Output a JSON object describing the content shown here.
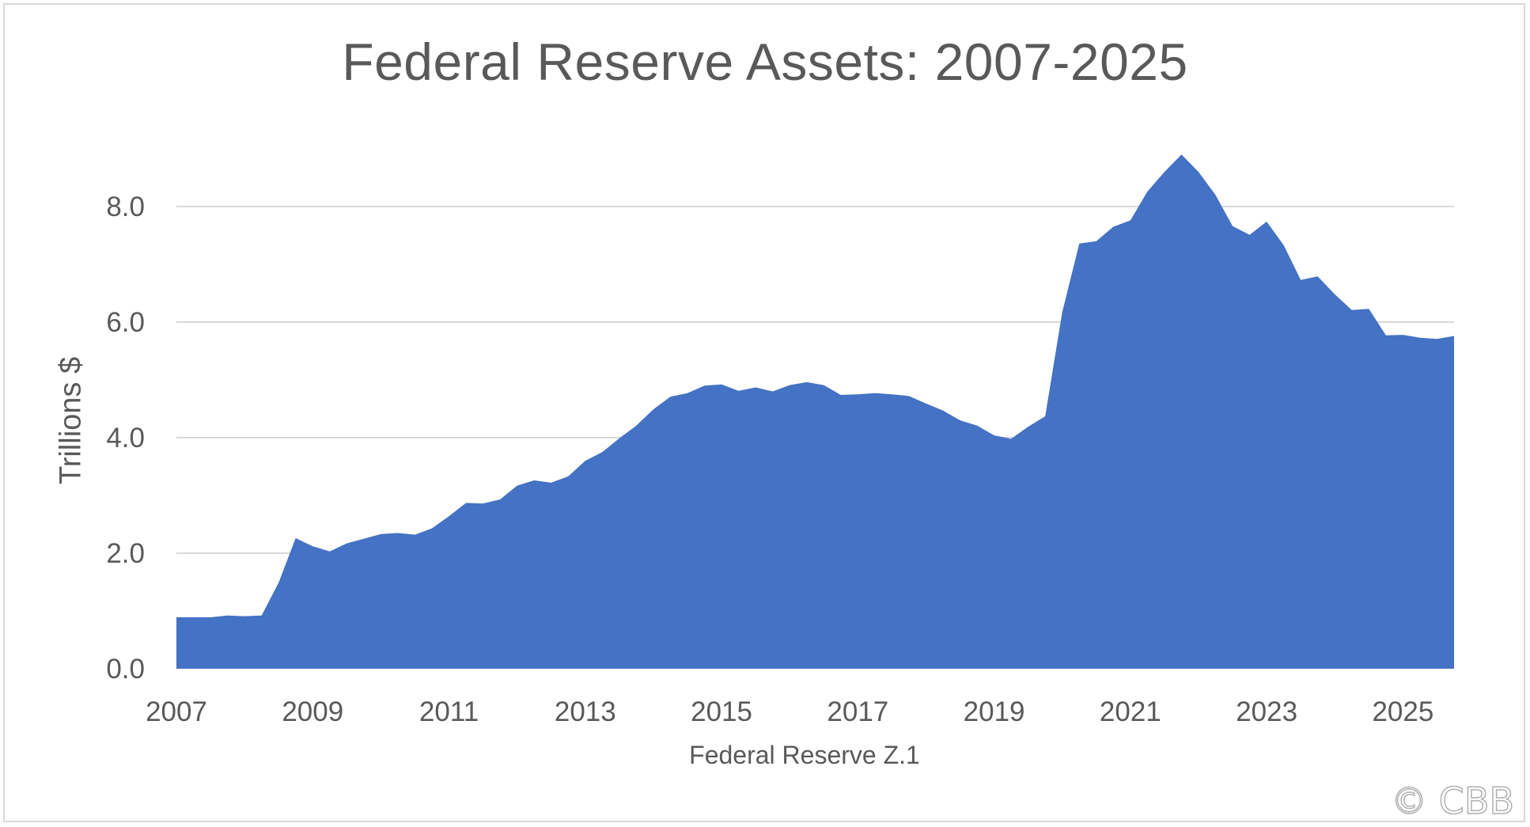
{
  "chart_data": {
    "type": "area",
    "title": "Federal Reserve Assets: 2007-2025",
    "ylabel": "Trillions $",
    "xlabel": "Federal Reserve Z.1",
    "xlim": [
      2007,
      2025.75
    ],
    "ylim": [
      0,
      9.0
    ],
    "x_ticks": [
      "2007",
      "2009",
      "2011",
      "2013",
      "2015",
      "2017",
      "2019",
      "2021",
      "2023",
      "2025"
    ],
    "y_ticks": [
      "0.0",
      "2.0",
      "4.0",
      "6.0",
      "8.0"
    ],
    "y_tick_values": [
      0,
      2,
      4,
      6,
      8
    ],
    "grid": "horizontal",
    "series": [
      {
        "color": "#4472c4",
        "x": [
          2007.0,
          2007.25,
          2007.5,
          2007.75,
          2008.0,
          2008.25,
          2008.5,
          2008.75,
          2009.0,
          2009.25,
          2009.5,
          2009.75,
          2010.0,
          2010.25,
          2010.5,
          2010.75,
          2011.0,
          2011.25,
          2011.5,
          2011.75,
          2012.0,
          2012.25,
          2012.5,
          2012.75,
          2013.0,
          2013.25,
          2013.5,
          2013.75,
          2014.0,
          2014.25,
          2014.5,
          2014.75,
          2015.0,
          2015.25,
          2015.5,
          2015.75,
          2016.0,
          2016.25,
          2016.5,
          2016.75,
          2017.0,
          2017.25,
          2017.5,
          2017.75,
          2018.0,
          2018.25,
          2018.5,
          2018.75,
          2019.0,
          2019.25,
          2019.5,
          2019.75,
          2020.0,
          2020.25,
          2020.5,
          2020.75,
          2021.0,
          2021.25,
          2021.5,
          2021.75,
          2022.0,
          2022.25,
          2022.5,
          2022.75,
          2023.0,
          2023.25,
          2023.5,
          2023.75,
          2024.0,
          2024.25,
          2024.5,
          2024.75,
          2025.0,
          2025.25,
          2025.5,
          2025.75
        ],
        "values": [
          0.89,
          0.89,
          0.89,
          0.92,
          0.91,
          0.92,
          1.49,
          2.26,
          2.12,
          2.03,
          2.17,
          2.25,
          2.33,
          2.35,
          2.32,
          2.43,
          2.64,
          2.87,
          2.86,
          2.93,
          3.17,
          3.26,
          3.22,
          3.33,
          3.6,
          3.75,
          3.99,
          4.21,
          4.49,
          4.71,
          4.77,
          4.9,
          4.92,
          4.81,
          4.87,
          4.8,
          4.91,
          4.96,
          4.91,
          4.74,
          4.75,
          4.77,
          4.75,
          4.72,
          4.59,
          4.47,
          4.3,
          4.21,
          4.04,
          3.98,
          4.19,
          4.37,
          6.17,
          7.36,
          7.4,
          7.65,
          7.76,
          8.26,
          8.6,
          8.9,
          8.6,
          8.2,
          7.66,
          7.51,
          7.74,
          7.33,
          6.73,
          6.79,
          6.48,
          6.21,
          6.23,
          5.77,
          5.78,
          5.73,
          5.71,
          5.76
        ]
      }
    ]
  },
  "watermark": "© CBB"
}
